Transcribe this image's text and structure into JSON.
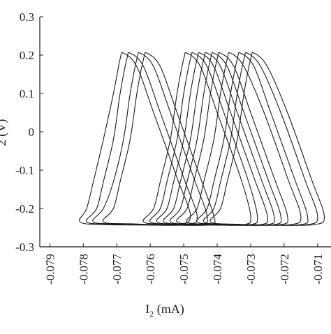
{
  "chart_data": {
    "type": "line",
    "title": "",
    "xlabel": "I",
    "xlabel_subscript": "2",
    "xlabel_unit": " (mA)",
    "ylabel_partial": "2 (V)",
    "xlim": [
      -0.0793,
      -0.0706
    ],
    "ylim": [
      -0.3,
      0.3
    ],
    "x_ticks": [
      -0.079,
      -0.078,
      -0.077,
      -0.076,
      -0.075,
      -0.074,
      -0.073,
      -0.072,
      -0.071
    ],
    "x_tick_labels": [
      "-0.079",
      "-0.078",
      "-0.077",
      "-0.076",
      "-0.075",
      "-0.074",
      "-0.073",
      "-0.072",
      "-0.071"
    ],
    "y_ticks": [
      -0.3,
      -0.2,
      -0.1,
      0,
      0.1,
      0.2,
      0.3
    ],
    "y_tick_labels": [
      "-0.3",
      "-0.2",
      "-0.1",
      "0",
      "0.1",
      "0.2",
      "0.3"
    ],
    "grid": false,
    "legend": "none",
    "line_color": "#1a1a1a",
    "series": [
      {
        "loops": [
          {
            "x": [
              -0.0768,
              -0.0769,
              -0.0771,
              -0.0774,
              -0.0777,
              -0.0779,
              -0.0781,
              -0.0774,
              -0.0762,
              -0.0752,
              -0.0748,
              -0.0752,
              -0.0759,
              -0.0764
            ],
            "y": [
              0.205,
              0.19,
              0.1,
              -0.02,
              -0.13,
              -0.2,
              -0.235,
              -0.242,
              -0.243,
              -0.242,
              -0.22,
              -0.12,
              0.05,
              0.17
            ]
          },
          {
            "x": [
              -0.0766,
              -0.0767,
              -0.0769,
              -0.0771,
              -0.0774,
              -0.0776,
              -0.0779,
              -0.0771,
              -0.0759,
              -0.0749,
              -0.0746,
              -0.075,
              -0.0757,
              -0.0762
            ],
            "y": [
              0.205,
              0.19,
              0.1,
              -0.02,
              -0.13,
              -0.2,
              -0.235,
              -0.241,
              -0.243,
              -0.242,
              -0.22,
              -0.12,
              0.05,
              0.17
            ]
          },
          {
            "x": [
              -0.0763,
              -0.0764,
              -0.0766,
              -0.0768,
              -0.0771,
              -0.0774,
              -0.0777,
              -0.0768,
              -0.0755,
              -0.0745,
              -0.0743,
              -0.0747,
              -0.0754,
              -0.0759
            ],
            "y": [
              0.205,
              0.19,
              0.1,
              -0.02,
              -0.13,
              -0.2,
              -0.235,
              -0.24,
              -0.243,
              -0.242,
              -0.22,
              -0.12,
              0.05,
              0.17
            ]
          },
          {
            "x": [
              -0.0761,
              -0.0762,
              -0.0764,
              -0.0766,
              -0.0769,
              -0.0771,
              -0.0774,
              -0.0765,
              -0.0752,
              -0.0742,
              -0.0741,
              -0.0745,
              -0.0752,
              -0.0757
            ],
            "y": [
              0.205,
              0.19,
              0.1,
              -0.02,
              -0.13,
              -0.2,
              -0.235,
              -0.24,
              -0.243,
              -0.242,
              -0.22,
              -0.12,
              0.05,
              0.17
            ]
          },
          {
            "x": [
              -0.0749,
              -0.075,
              -0.0752,
              -0.0754,
              -0.0757,
              -0.0759,
              -0.0762,
              -0.0754,
              -0.0742,
              -0.0732,
              -0.073,
              -0.0733,
              -0.074,
              -0.0745
            ],
            "y": [
              0.205,
              0.19,
              0.1,
              -0.02,
              -0.13,
              -0.2,
              -0.235,
              -0.241,
              -0.243,
              -0.242,
              -0.22,
              -0.12,
              0.05,
              0.17
            ]
          },
          {
            "x": [
              -0.0747,
              -0.0748,
              -0.075,
              -0.0752,
              -0.0755,
              -0.0757,
              -0.076,
              -0.0752,
              -0.074,
              -0.073,
              -0.0728,
              -0.0731,
              -0.0738,
              -0.0743
            ],
            "y": [
              0.205,
              0.19,
              0.1,
              -0.02,
              -0.13,
              -0.2,
              -0.235,
              -0.241,
              -0.243,
              -0.242,
              -0.22,
              -0.12,
              0.05,
              0.17
            ]
          },
          {
            "x": [
              -0.0745,
              -0.0746,
              -0.0748,
              -0.075,
              -0.0753,
              -0.0755,
              -0.0758,
              -0.075,
              -0.0738,
              -0.0727,
              -0.0725,
              -0.0729,
              -0.0736,
              -0.0741
            ],
            "y": [
              0.205,
              0.19,
              0.1,
              -0.02,
              -0.13,
              -0.2,
              -0.235,
              -0.241,
              -0.243,
              -0.242,
              -0.22,
              -0.12,
              0.05,
              0.17
            ]
          },
          {
            "x": [
              -0.0743,
              -0.0744,
              -0.0746,
              -0.0748,
              -0.0751,
              -0.0753,
              -0.0756,
              -0.0748,
              -0.0736,
              -0.0725,
              -0.0723,
              -0.0727,
              -0.0734,
              -0.0739
            ],
            "y": [
              0.205,
              0.19,
              0.1,
              -0.02,
              -0.13,
              -0.2,
              -0.235,
              -0.241,
              -0.243,
              -0.242,
              -0.22,
              -0.12,
              0.05,
              0.17
            ]
          },
          {
            "x": [
              -0.0741,
              -0.0742,
              -0.0744,
              -0.0746,
              -0.0749,
              -0.0751,
              -0.0754,
              -0.0746,
              -0.0734,
              -0.0723,
              -0.0721,
              -0.0725,
              -0.0732,
              -0.0737
            ],
            "y": [
              0.205,
              0.19,
              0.1,
              -0.02,
              -0.13,
              -0.2,
              -0.235,
              -0.241,
              -0.243,
              -0.242,
              -0.22,
              -0.12,
              0.05,
              0.17
            ]
          },
          {
            "x": [
              -0.0739,
              -0.074,
              -0.0742,
              -0.0744,
              -0.0747,
              -0.0749,
              -0.0752,
              -0.0744,
              -0.0732,
              -0.0721,
              -0.0719,
              -0.0723,
              -0.073,
              -0.0735
            ],
            "y": [
              0.205,
              0.19,
              0.1,
              -0.02,
              -0.13,
              -0.2,
              -0.235,
              -0.241,
              -0.243,
              -0.242,
              -0.22,
              -0.12,
              0.05,
              0.17
            ]
          },
          {
            "x": [
              -0.0736,
              -0.0737,
              -0.0739,
              -0.0741,
              -0.0744,
              -0.0746,
              -0.0749,
              -0.0741,
              -0.0729,
              -0.0718,
              -0.0715,
              -0.0719,
              -0.0726,
              -0.0732
            ],
            "y": [
              0.205,
              0.19,
              0.1,
              -0.02,
              -0.13,
              -0.2,
              -0.235,
              -0.241,
              -0.243,
              -0.242,
              -0.22,
              -0.12,
              0.05,
              0.17
            ]
          },
          {
            "x": [
              -0.0733,
              -0.0734,
              -0.0736,
              -0.0738,
              -0.0741,
              -0.0743,
              -0.0746,
              -0.0738,
              -0.0726,
              -0.0715,
              -0.0713,
              -0.0717,
              -0.0724,
              -0.0729
            ],
            "y": [
              0.205,
              0.19,
              0.1,
              -0.02,
              -0.13,
              -0.2,
              -0.235,
              -0.241,
              -0.243,
              -0.242,
              -0.22,
              -0.12,
              0.05,
              0.17
            ]
          },
          {
            "x": [
              -0.0731,
              -0.0732,
              -0.0734,
              -0.0736,
              -0.0739,
              -0.0741,
              -0.0744,
              -0.0736,
              -0.0724,
              -0.0713,
              -0.071,
              -0.0714,
              -0.0721,
              -0.0727
            ],
            "y": [
              0.205,
              0.19,
              0.1,
              -0.02,
              -0.13,
              -0.2,
              -0.235,
              -0.241,
              -0.243,
              -0.242,
              -0.22,
              -0.12,
              0.05,
              0.17
            ]
          },
          {
            "x": [
              -0.0729,
              -0.073,
              -0.0732,
              -0.0734,
              -0.0737,
              -0.0739,
              -0.0742,
              -0.0734,
              -0.0722,
              -0.0711,
              -0.0708,
              -0.0712,
              -0.0719,
              -0.0725
            ],
            "y": [
              0.205,
              0.19,
              0.1,
              -0.02,
              -0.13,
              -0.2,
              -0.235,
              -0.241,
              -0.243,
              -0.242,
              -0.22,
              -0.12,
              0.05,
              0.17
            ]
          }
        ]
      }
    ]
  }
}
